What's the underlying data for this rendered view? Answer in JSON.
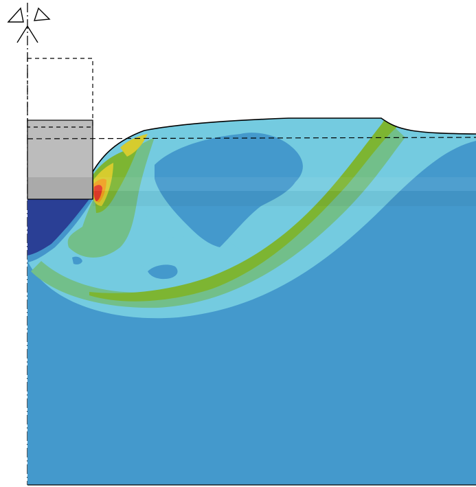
{
  "figure": {
    "colors": {
      "background": "#ffffff",
      "base": "#4499cc",
      "light_cyan": "#74cbe0",
      "pale_green": "#72bf8a",
      "green": "#7db532",
      "yellow": "#d6cc2e",
      "orange": "#f0a020",
      "red": "#e33b2a",
      "dark_blue": "#2a3f95",
      "mid_blue": "#3f8fc9",
      "punch": "#bcbcbc",
      "punch_lower": "#aaaaaa",
      "outline": "#000000"
    },
    "icons": [
      "symmetry-axis-symbol"
    ]
  }
}
